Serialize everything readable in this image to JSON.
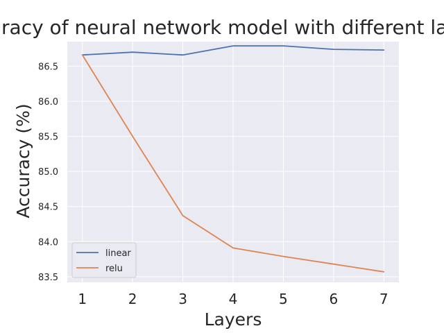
{
  "chart_data": {
    "type": "line",
    "title": "Accuracy of neural network model with different layers",
    "xlabel": "Layers",
    "ylabel": "Accuracy (%)",
    "x": [
      1,
      2,
      3,
      4,
      5,
      6,
      7
    ],
    "x_tick_labels": [
      "1",
      "2",
      "3",
      "4",
      "5",
      "6",
      "7"
    ],
    "y_ticks": [
      83.5,
      84.0,
      84.5,
      85.0,
      85.5,
      86.0,
      86.5
    ],
    "y_tick_labels": [
      "83.5",
      "84.0",
      "84.5",
      "85.0",
      "85.5",
      "86.0",
      "86.5"
    ],
    "xlim": [
      0.7,
      7.3
    ],
    "ylim": [
      83.42,
      86.85
    ],
    "grid": true,
    "legend_position": "lower-left",
    "series": [
      {
        "name": "linear",
        "color": "#4c72b0",
        "values": [
          86.66,
          86.7,
          86.66,
          86.79,
          86.79,
          86.74,
          86.73
        ]
      },
      {
        "name": "relu",
        "color": "#dd8452",
        "values": [
          86.66,
          85.5,
          84.37,
          83.91,
          83.79,
          83.68,
          83.57
        ]
      }
    ]
  },
  "colors": {
    "plot_background": "#eaeaf2",
    "grid": "#ffffff"
  }
}
